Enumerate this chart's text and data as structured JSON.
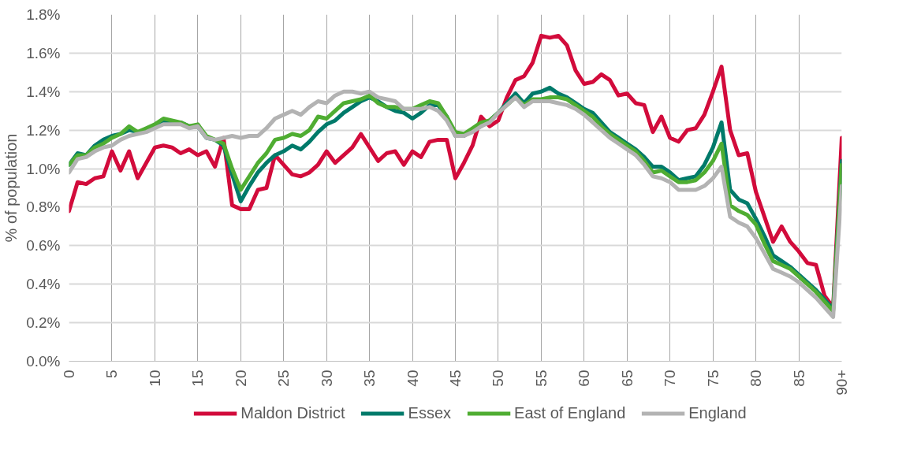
{
  "chart_data": {
    "type": "line",
    "ylabel": "% of population",
    "x": [
      0,
      1,
      2,
      3,
      4,
      5,
      6,
      7,
      8,
      9,
      10,
      11,
      12,
      13,
      14,
      15,
      16,
      17,
      18,
      19,
      20,
      21,
      22,
      23,
      24,
      25,
      26,
      27,
      28,
      29,
      30,
      31,
      32,
      33,
      34,
      35,
      36,
      37,
      38,
      39,
      40,
      41,
      42,
      43,
      44,
      45,
      46,
      47,
      48,
      49,
      50,
      51,
      52,
      53,
      54,
      55,
      56,
      57,
      58,
      59,
      60,
      61,
      62,
      63,
      64,
      65,
      66,
      67,
      68,
      69,
      70,
      71,
      72,
      73,
      74,
      75,
      76,
      77,
      78,
      79,
      80,
      81,
      82,
      83,
      84,
      85,
      86,
      87,
      88,
      89,
      90
    ],
    "series": [
      {
        "name": "Maldon District",
        "color": "#d20b3b",
        "values": [
          0.78,
          0.93,
          0.92,
          0.95,
          0.96,
          1.09,
          0.99,
          1.09,
          0.95,
          1.03,
          1.11,
          1.12,
          1.11,
          1.08,
          1.1,
          1.07,
          1.09,
          1.01,
          1.16,
          0.81,
          0.79,
          0.79,
          0.89,
          0.9,
          1.07,
          1.02,
          0.97,
          0.96,
          0.98,
          1.02,
          1.09,
          1.03,
          1.07,
          1.11,
          1.18,
          1.11,
          1.04,
          1.08,
          1.09,
          1.02,
          1.09,
          1.06,
          1.14,
          1.15,
          1.15,
          0.95,
          1.03,
          1.12,
          1.27,
          1.22,
          1.25,
          1.37,
          1.46,
          1.48,
          1.55,
          1.69,
          1.68,
          1.69,
          1.64,
          1.51,
          1.44,
          1.45,
          1.49,
          1.46,
          1.38,
          1.39,
          1.34,
          1.33,
          1.19,
          1.27,
          1.16,
          1.14,
          1.2,
          1.21,
          1.28,
          1.4,
          1.53,
          1.2,
          1.07,
          1.08,
          0.88,
          0.75,
          0.62,
          0.7,
          0.62,
          0.57,
          0.51,
          0.5,
          0.34,
          0.28,
          1.16
        ]
      },
      {
        "name": "Essex",
        "color": "#007a6a",
        "values": [
          1.02,
          1.08,
          1.07,
          1.12,
          1.15,
          1.17,
          1.18,
          1.2,
          1.19,
          1.2,
          1.22,
          1.24,
          1.24,
          1.24,
          1.22,
          1.22,
          1.16,
          1.15,
          1.12,
          0.97,
          0.83,
          0.91,
          0.98,
          1.03,
          1.07,
          1.09,
          1.12,
          1.1,
          1.14,
          1.19,
          1.23,
          1.25,
          1.29,
          1.32,
          1.35,
          1.37,
          1.35,
          1.32,
          1.3,
          1.29,
          1.26,
          1.29,
          1.33,
          1.33,
          1.27,
          1.17,
          1.17,
          1.2,
          1.22,
          1.25,
          1.29,
          1.34,
          1.39,
          1.34,
          1.39,
          1.4,
          1.42,
          1.39,
          1.37,
          1.34,
          1.31,
          1.29,
          1.24,
          1.19,
          1.16,
          1.13,
          1.1,
          1.06,
          1.01,
          1.01,
          0.98,
          0.94,
          0.95,
          0.96,
          1.02,
          1.11,
          1.24,
          0.89,
          0.84,
          0.82,
          0.74,
          0.65,
          0.55,
          0.52,
          0.49,
          0.45,
          0.41,
          0.37,
          0.32,
          0.27,
          1.04
        ]
      },
      {
        "name": "East of England",
        "color": "#4fad32",
        "values": [
          1.02,
          1.07,
          1.07,
          1.11,
          1.13,
          1.16,
          1.18,
          1.22,
          1.19,
          1.21,
          1.23,
          1.26,
          1.25,
          1.24,
          1.22,
          1.23,
          1.17,
          1.15,
          1.13,
          1.0,
          0.89,
          0.96,
          1.03,
          1.08,
          1.15,
          1.16,
          1.18,
          1.17,
          1.2,
          1.27,
          1.26,
          1.3,
          1.34,
          1.35,
          1.36,
          1.38,
          1.34,
          1.32,
          1.32,
          1.31,
          1.31,
          1.33,
          1.35,
          1.34,
          1.27,
          1.19,
          1.18,
          1.21,
          1.24,
          1.25,
          1.29,
          1.33,
          1.37,
          1.33,
          1.36,
          1.36,
          1.37,
          1.37,
          1.36,
          1.33,
          1.3,
          1.27,
          1.22,
          1.18,
          1.15,
          1.12,
          1.09,
          1.04,
          0.98,
          0.99,
          0.96,
          0.93,
          0.93,
          0.94,
          0.98,
          1.04,
          1.13,
          0.81,
          0.78,
          0.76,
          0.71,
          0.61,
          0.52,
          0.5,
          0.48,
          0.44,
          0.4,
          0.36,
          0.31,
          0.26,
          1.02
        ]
      },
      {
        "name": "England",
        "color": "#b3b3b3",
        "values": [
          0.98,
          1.05,
          1.06,
          1.09,
          1.11,
          1.12,
          1.15,
          1.17,
          1.18,
          1.19,
          1.21,
          1.23,
          1.23,
          1.23,
          1.21,
          1.22,
          1.16,
          1.15,
          1.16,
          1.17,
          1.16,
          1.17,
          1.17,
          1.21,
          1.26,
          1.28,
          1.3,
          1.28,
          1.32,
          1.35,
          1.34,
          1.38,
          1.4,
          1.4,
          1.39,
          1.4,
          1.37,
          1.36,
          1.35,
          1.31,
          1.31,
          1.31,
          1.32,
          1.3,
          1.25,
          1.17,
          1.17,
          1.19,
          1.22,
          1.24,
          1.29,
          1.33,
          1.37,
          1.32,
          1.35,
          1.35,
          1.35,
          1.34,
          1.33,
          1.31,
          1.28,
          1.24,
          1.2,
          1.16,
          1.13,
          1.1,
          1.07,
          1.02,
          0.96,
          0.95,
          0.93,
          0.89,
          0.89,
          0.89,
          0.91,
          0.95,
          1.01,
          0.75,
          0.72,
          0.7,
          0.64,
          0.56,
          0.48,
          0.46,
          0.44,
          0.41,
          0.37,
          0.33,
          0.28,
          0.23,
          0.91
        ]
      }
    ],
    "xlim": [
      0,
      90
    ],
    "xticks": [
      0,
      5,
      10,
      15,
      20,
      25,
      30,
      35,
      40,
      45,
      50,
      55,
      60,
      65,
      70,
      75,
      80,
      85,
      {
        "value": 90,
        "label": "90+"
      }
    ],
    "ylim": [
      0,
      1.8
    ],
    "yticks": [
      {
        "value": 0,
        "label": "0.0%"
      },
      {
        "value": 0.2,
        "label": "0.2%"
      },
      {
        "value": 0.4,
        "label": "0.4%"
      },
      {
        "value": 0.6,
        "label": "0.6%"
      },
      {
        "value": 0.8,
        "label": "0.8%"
      },
      {
        "value": 1.0,
        "label": "1.0%"
      },
      {
        "value": 1.2,
        "label": "1.2%"
      },
      {
        "value": 1.4,
        "label": "1.4%"
      },
      {
        "value": 1.6,
        "label": "1.6%"
      },
      {
        "value": 1.8,
        "label": "1.8%"
      }
    ],
    "grid": true,
    "legend": "bottom",
    "line_style": "solid",
    "marker": "none"
  }
}
